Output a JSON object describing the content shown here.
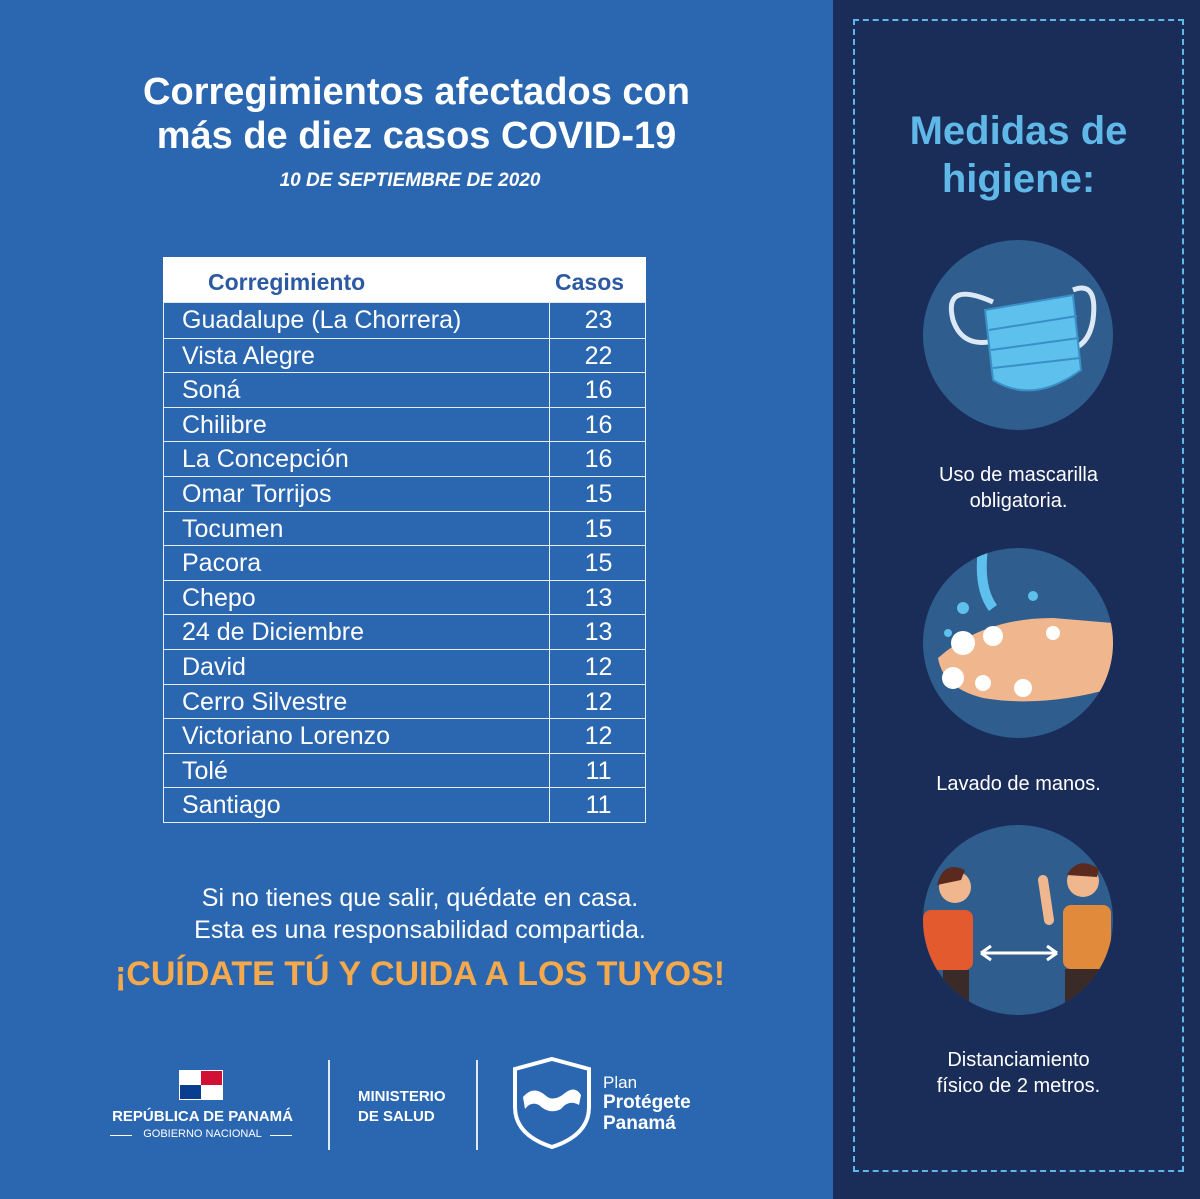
{
  "header": {
    "title_line1": "Corregimientos afectados con",
    "title_line2": "más de diez casos COVID-19",
    "date": "10  DE SEPTIEMBRE DE 2020"
  },
  "table": {
    "col_name": "Corregimiento",
    "col_cases": "Casos",
    "rows": [
      {
        "name": "Guadalupe (La Chorrera)",
        "cases": "23"
      },
      {
        "name": "Vista Alegre",
        "cases": "22"
      },
      {
        "name": "Soná",
        "cases": "16"
      },
      {
        "name": "Chilibre",
        "cases": "16"
      },
      {
        "name": "La Concepción",
        "cases": "16"
      },
      {
        "name": "Omar Torrijos",
        "cases": "15"
      },
      {
        "name": "Tocumen",
        "cases": "15"
      },
      {
        "name": "Pacora",
        "cases": "15"
      },
      {
        "name": "Chepo",
        "cases": "13"
      },
      {
        "name": "24 de Diciembre",
        "cases": "13"
      },
      {
        "name": "David",
        "cases": "12"
      },
      {
        "name": "Cerro Silvestre",
        "cases": "12"
      },
      {
        "name": "Victoriano Lorenzo",
        "cases": "12"
      },
      {
        "name": "Tolé",
        "cases": "11"
      },
      {
        "name": "Santiago",
        "cases": "11"
      }
    ]
  },
  "message": {
    "line1": "Si no tienes que salir, quédate en casa.",
    "line2": "Esta es una responsabilidad compartida.",
    "cta": "¡CUÍDATE TÚ Y CUIDA A LOS TUYOS!"
  },
  "measures": {
    "title_line1": "Medidas de",
    "title_line2": "higiene:",
    "items": [
      {
        "icon": "face-mask-icon",
        "line1": "Uso de mascarilla",
        "line2": "obligatoria."
      },
      {
        "icon": "hand-washing-icon",
        "line1": "Lavado de manos.",
        "line2": ""
      },
      {
        "icon": "social-distancing-icon",
        "line1": "Distanciamiento",
        "line2": "físico de 2 metros."
      }
    ]
  },
  "footer": {
    "country": "REPÚBLICA DE PANAMÁ",
    "government": "GOBIERNO NACIONAL",
    "ministry_line1": "MINISTERIO",
    "ministry_line2": "DE SALUD",
    "plan_line1": "Plan",
    "plan_line2": "Protégete",
    "plan_line3": "Panamá"
  },
  "colors": {
    "left_bg": "#2b67b1",
    "right_bg": "#1a2d58",
    "accent_blue": "#5fb8e8",
    "cta_orange": "#f5a94a"
  }
}
